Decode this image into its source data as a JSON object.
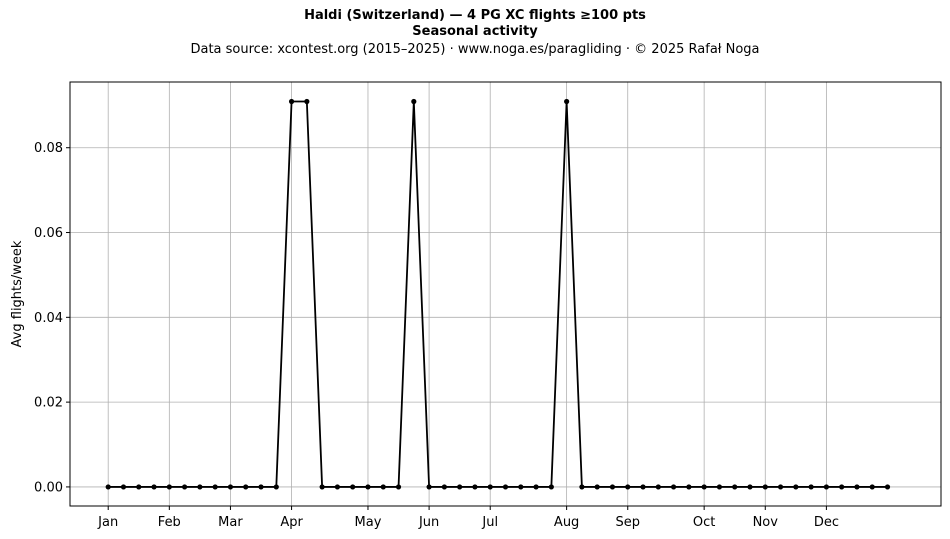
{
  "chart_data": {
    "type": "line",
    "title": "Haldi (Switzerland)  —  4 PG XC flights ≥100 pts",
    "title2": "Seasonal activity",
    "subtitle": "Data source: xcontest.org (2015–2025)  ·  www.noga.es/paragliding  ·  © 2025 Rafał Noga",
    "xlabel": "",
    "ylabel": "Avg flights/week",
    "ylim": [
      -0.0045,
      0.0955
    ],
    "xlim": [
      -2.5,
      54.5
    ],
    "yticks": [
      0,
      0.02,
      0.04,
      0.06,
      0.08
    ],
    "ytick_labels": [
      "0.00",
      "0.02",
      "0.04",
      "0.06",
      "0.08"
    ],
    "xticks": [
      0,
      4,
      8,
      12,
      17,
      21,
      25,
      30,
      34,
      39,
      43,
      47
    ],
    "xtick_labels": [
      "Jan",
      "Feb",
      "Mar",
      "Apr",
      "May",
      "Jun",
      "Jul",
      "Aug",
      "Sep",
      "Oct",
      "Nov",
      "Dec"
    ],
    "grid": true,
    "line_color": "#000000",
    "grid_color": "#b0b0b0",
    "x": [
      0,
      1,
      2,
      3,
      4,
      5,
      6,
      7,
      8,
      9,
      10,
      11,
      12,
      13,
      14,
      15,
      16,
      17,
      18,
      19,
      20,
      21,
      22,
      23,
      24,
      25,
      26,
      27,
      28,
      29,
      30,
      31,
      32,
      33,
      34,
      35,
      36,
      37,
      38,
      39,
      40,
      41,
      42,
      43,
      44,
      45,
      46,
      47,
      48,
      49,
      50,
      51
    ],
    "y": [
      0,
      0,
      0,
      0,
      0,
      0,
      0,
      0,
      0,
      0,
      0,
      0,
      0.0909,
      0.0909,
      0,
      0,
      0,
      0,
      0,
      0,
      0.0909,
      0,
      0,
      0,
      0,
      0,
      0,
      0,
      0,
      0,
      0.0909,
      0,
      0,
      0,
      0,
      0,
      0,
      0,
      0,
      0,
      0,
      0,
      0,
      0,
      0,
      0,
      0,
      0,
      0,
      0,
      0,
      0
    ]
  }
}
